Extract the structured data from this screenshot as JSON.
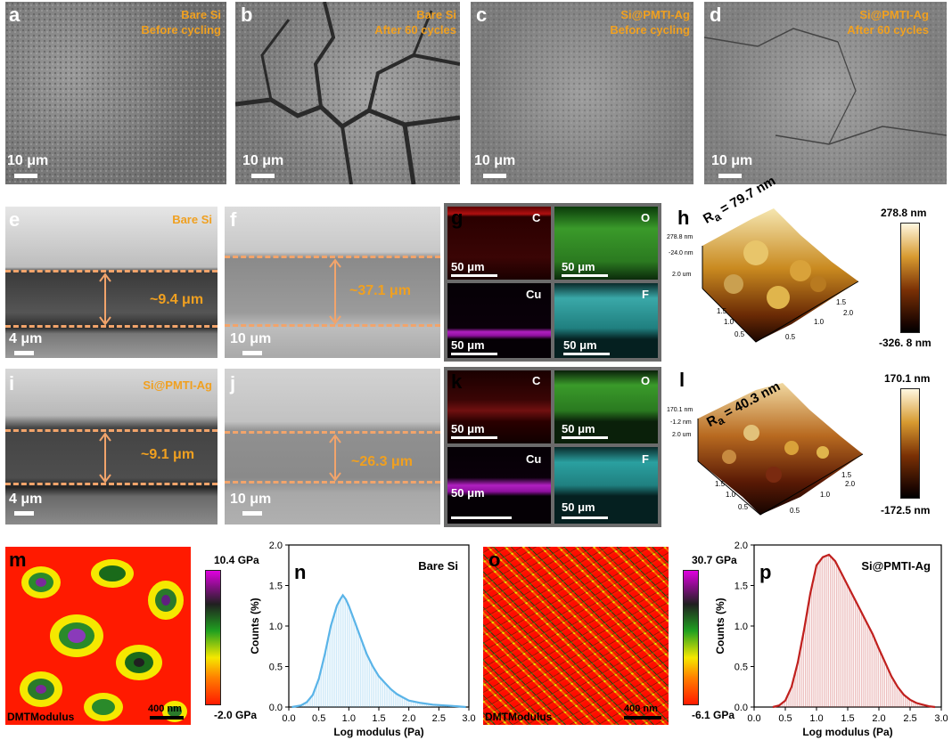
{
  "panels": {
    "a": {
      "letter": "a",
      "line1": "Bare Si",
      "line2": "Before cycling",
      "scale": "10 μm"
    },
    "b": {
      "letter": "b",
      "line1": "Bare Si",
      "line2": "After 60 cycles",
      "scale": "10 μm"
    },
    "c": {
      "letter": "c",
      "line1": "Si@PMTI-Ag",
      "line2": "Before cycling",
      "scale": "10 μm"
    },
    "d": {
      "letter": "d",
      "line1": "Si@PMTI-Ag",
      "line2": "After 60 cycles",
      "scale": "10 μm"
    },
    "e": {
      "letter": "e",
      "label": "Bare Si",
      "thickness": "~9.4 μm",
      "scale": "4 μm"
    },
    "f": {
      "letter": "f",
      "thickness": "~37.1 μm",
      "scale": "10 μm"
    },
    "g": {
      "letter": "g",
      "maps": [
        "C",
        "O",
        "Cu",
        "F"
      ],
      "scale": "50 μm"
    },
    "h": {
      "letter": "h",
      "ra": "R",
      "ra_sub": "a",
      "ra_val": " = 79.7 nm",
      "cbar_max": "278.8 nm",
      "cbar_min": "-326. 8 nm",
      "z1": "278.8 nm",
      "z2": "-24.0 nm",
      "z3": "2.0 um"
    },
    "i": {
      "letter": "i",
      "label": "Si@PMTI-Ag",
      "thickness": "~9.1 μm",
      "scale": "4 μm"
    },
    "j": {
      "letter": "j",
      "thickness": "~26.3 μm",
      "scale": "10 μm"
    },
    "k": {
      "letter": "k",
      "maps": [
        "C",
        "O",
        "Cu",
        "F"
      ],
      "scale": "50 μm"
    },
    "l": {
      "letter": "l",
      "ra": "R",
      "ra_sub": "a",
      "ra_val": " = 40.3 nm",
      "cbar_max": "170.1 nm",
      "cbar_min": "-172.5 nm",
      "z1": "170.1 nm",
      "z2": "-1.2 nm",
      "z3": "2.0 um"
    },
    "m": {
      "letter": "m",
      "cbar_max": "10.4 GPa",
      "cbar_min": "-2.0 GPa",
      "caption": "DMTModulus",
      "scale": "400 nm"
    },
    "o": {
      "letter": "o",
      "cbar_max": "30.7 GPa",
      "cbar_min": "-6.1 GPa",
      "caption": "DMTModulus",
      "scale": "400 nm"
    },
    "n": {
      "letter": "n",
      "label": "Bare Si"
    },
    "p": {
      "letter": "p",
      "label": "Si@PMTI-Ag"
    }
  },
  "afm_axes": {
    "ticks": [
      "0.5",
      "1.0",
      "1.5",
      "2.0"
    ],
    "unit": "um"
  },
  "colors": {
    "accent_orange": "#f0a020",
    "dash": "#f2a46b",
    "hist_n": "#5ab4e8",
    "hist_p": "#c0201e"
  },
  "chart_data": [
    {
      "type": "area",
      "panel": "n",
      "title": "Bare Si",
      "xlabel": "Log modulus (Pa)",
      "ylabel": "Counts (%)",
      "xlim": [
        0,
        3.0
      ],
      "ylim": [
        0,
        2.0
      ],
      "xticks": [
        "0.0",
        "0.5",
        "1.0",
        "1.5",
        "2.0",
        "2.5",
        "3.0"
      ],
      "yticks": [
        "0.0",
        "0.5",
        "1.0",
        "1.5",
        "2.0"
      ],
      "x": [
        0.05,
        0.2,
        0.3,
        0.4,
        0.5,
        0.6,
        0.7,
        0.8,
        0.85,
        0.9,
        0.95,
        1.0,
        1.1,
        1.2,
        1.3,
        1.4,
        1.5,
        1.6,
        1.7,
        1.8,
        1.9,
        2.0,
        2.2,
        2.4,
        2.6,
        2.8,
        2.95
      ],
      "y": [
        0.0,
        0.02,
        0.06,
        0.15,
        0.35,
        0.65,
        1.0,
        1.25,
        1.32,
        1.38,
        1.33,
        1.25,
        1.05,
        0.85,
        0.65,
        0.5,
        0.38,
        0.3,
        0.22,
        0.16,
        0.12,
        0.08,
        0.05,
        0.03,
        0.02,
        0.01,
        0.0
      ]
    },
    {
      "type": "area",
      "panel": "p",
      "title": "Si@PMTI-Ag",
      "xlabel": "Log modulus (Pa)",
      "ylabel": "Counts (%)",
      "xlim": [
        0,
        3.0
      ],
      "ylim": [
        0,
        2.0
      ],
      "xticks": [
        "0.0",
        "0.5",
        "1.0",
        "1.5",
        "2.0",
        "2.5",
        "3.0"
      ],
      "yticks": [
        "0.0",
        "0.5",
        "1.0",
        "1.5",
        "2.0"
      ],
      "x": [
        0.3,
        0.4,
        0.5,
        0.6,
        0.7,
        0.8,
        0.9,
        1.0,
        1.1,
        1.2,
        1.3,
        1.4,
        1.5,
        1.6,
        1.7,
        1.8,
        1.9,
        2.0,
        2.1,
        2.2,
        2.3,
        2.4,
        2.5,
        2.6,
        2.7,
        2.8,
        2.9
      ],
      "y": [
        0.0,
        0.02,
        0.08,
        0.25,
        0.55,
        0.95,
        1.4,
        1.75,
        1.85,
        1.88,
        1.8,
        1.65,
        1.5,
        1.35,
        1.2,
        1.05,
        0.9,
        0.72,
        0.55,
        0.38,
        0.25,
        0.15,
        0.09,
        0.05,
        0.03,
        0.01,
        0.0
      ]
    }
  ]
}
